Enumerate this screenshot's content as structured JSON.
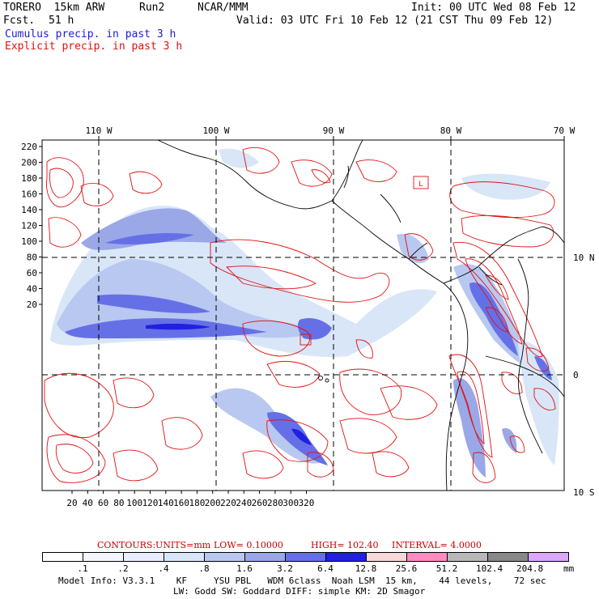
{
  "header": {
    "model": "TORERO  15km ARW",
    "run": "Run2",
    "center": "NCAR/MMM",
    "init": "Init: 00 UTC Wed 08 Feb 12",
    "fcst_label": "Fcst.",
    "fcst_value": "51 h",
    "valid": "Valid: 03 UTC Fri 10 Feb 12 (21 CST Thu 09 Feb 12)",
    "line_cumulus": "Cumulus precip. in past 3 h",
    "line_explicit": "Explicit precip. in past 3 h"
  },
  "map": {
    "lon_labels": [
      "110 W",
      "100 W",
      "90 W",
      "80 W",
      "70 W"
    ],
    "lat_labels": [
      "10 N",
      "0",
      "10 S"
    ],
    "y_ticks": [
      "220",
      "200",
      "180",
      "160",
      "140",
      "120",
      "100",
      "80",
      "60",
      "40",
      "20"
    ],
    "x_ticks": [
      "20",
      "40",
      "60",
      "80",
      "100",
      "120",
      "140",
      "160",
      "180",
      "200",
      "220",
      "240",
      "260",
      "280",
      "300",
      "320"
    ],
    "box_label": "L"
  },
  "contours": {
    "prefix": "CONTOURS:",
    "units": "UNITS=mm",
    "low": "LOW= 0.10000",
    "high": "HIGH= 102.40",
    "interval": "INTERVAL= 4.0000"
  },
  "legend": {
    "labels": [
      ".1",
      ".2",
      ".4",
      ".8",
      "1.6",
      "3.2",
      "6.4",
      "12.8",
      "25.6",
      "51.2",
      "102.4",
      "204.8"
    ],
    "unit": "mm",
    "colors": [
      "#ffffff",
      "#f4f6ff",
      "#e8ecff",
      "#d8e6f8",
      "#b8c8f0",
      "#9aa8e8",
      "#6670e6",
      "#2020e0",
      "#f8d8d8",
      "#ff8cc0",
      "#b8b8b8",
      "#888888",
      "#dca8ff"
    ]
  },
  "footer": {
    "line1": "Model Info: V3.3.1    KF     YSU PBL   WDM 6class  Noah LSM  15 km,    44 levels,    72 sec",
    "line2": "LW: Godd SW: Goddard DIFF: simple KM: 2D Smagor"
  }
}
